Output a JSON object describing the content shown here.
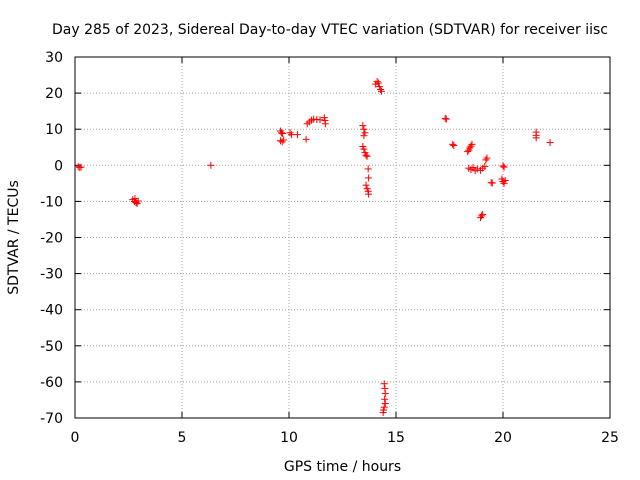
{
  "chart_data": {
    "type": "scatter",
    "title": "Day 285 of 2023, Sidereal Day-to-day VTEC variation (SDTVAR) for receiver iisc",
    "xlabel": "GPS time / hours",
    "ylabel": "SDTVAR / TECUs",
    "xlim": [
      0,
      25
    ],
    "ylim": [
      -70,
      30
    ],
    "x_ticks": [
      0,
      5,
      10,
      15,
      20,
      25
    ],
    "y_ticks": [
      -70,
      -60,
      -50,
      -40,
      -30,
      -20,
      -10,
      0,
      10,
      20,
      30
    ],
    "grid": true,
    "marker": "plus",
    "color": "#ff0000",
    "series": [
      {
        "name": "SDTVAR",
        "points": [
          [
            0.15,
            -0.4
          ],
          [
            0.22,
            -0.6
          ],
          [
            0.28,
            -0.5
          ],
          [
            2.7,
            -9.5
          ],
          [
            2.78,
            -10.0
          ],
          [
            2.85,
            -10.3
          ],
          [
            2.9,
            -10.6
          ],
          [
            2.95,
            -9.9
          ],
          [
            2.8,
            -9.2
          ],
          [
            6.35,
            0.0
          ],
          [
            9.6,
            9.5
          ],
          [
            9.65,
            9.0
          ],
          [
            9.7,
            8.8
          ],
          [
            9.6,
            6.8
          ],
          [
            9.68,
            6.5
          ],
          [
            9.75,
            7.0
          ],
          [
            10.05,
            9.0
          ],
          [
            10.12,
            8.5
          ],
          [
            10.4,
            8.5
          ],
          [
            10.8,
            7.2
          ],
          [
            10.85,
            11.5
          ],
          [
            10.95,
            12.0
          ],
          [
            11.05,
            12.5
          ],
          [
            11.15,
            12.8
          ],
          [
            11.3,
            12.7
          ],
          [
            11.45,
            12.6
          ],
          [
            11.65,
            13.2
          ],
          [
            11.7,
            11.5
          ],
          [
            11.68,
            12.4
          ],
          [
            13.45,
            11.0
          ],
          [
            13.5,
            10.0
          ],
          [
            13.55,
            9.0
          ],
          [
            13.5,
            8.2
          ],
          [
            13.45,
            5.2
          ],
          [
            13.5,
            4.5
          ],
          [
            13.55,
            3.5
          ],
          [
            13.6,
            2.8
          ],
          [
            13.65,
            2.5
          ],
          [
            13.7,
            -1.0
          ],
          [
            13.72,
            -3.5
          ],
          [
            13.6,
            -5.5
          ],
          [
            13.65,
            -6.5
          ],
          [
            13.7,
            -7.2
          ],
          [
            13.72,
            -8.0
          ],
          [
            14.05,
            22.5
          ],
          [
            14.12,
            23.2
          ],
          [
            14.18,
            22.8
          ],
          [
            14.22,
            21.8
          ],
          [
            14.28,
            21.0
          ],
          [
            14.32,
            20.5
          ],
          [
            14.45,
            -60.5
          ],
          [
            14.48,
            -61.8
          ],
          [
            14.5,
            -63.2
          ],
          [
            14.47,
            -64.8
          ],
          [
            14.5,
            -66.0
          ],
          [
            14.45,
            -67.0
          ],
          [
            14.42,
            -67.8
          ],
          [
            14.4,
            -68.5
          ],
          [
            17.3,
            13.0
          ],
          [
            17.35,
            12.8
          ],
          [
            17.65,
            5.8
          ],
          [
            17.7,
            5.5
          ],
          [
            18.35,
            3.8
          ],
          [
            18.4,
            4.2
          ],
          [
            18.45,
            4.8
          ],
          [
            18.5,
            5.3
          ],
          [
            18.55,
            5.8
          ],
          [
            18.4,
            -0.8
          ],
          [
            18.5,
            -1.2
          ],
          [
            18.6,
            -0.6
          ],
          [
            18.7,
            -1.5
          ],
          [
            18.8,
            -1.0
          ],
          [
            18.95,
            -1.4
          ],
          [
            19.05,
            -0.8
          ],
          [
            19.15,
            -0.3
          ],
          [
            19.2,
            1.5
          ],
          [
            19.25,
            2.0
          ],
          [
            18.95,
            -14.5
          ],
          [
            19.0,
            -14.0
          ],
          [
            19.05,
            -13.6
          ],
          [
            19.45,
            -4.8
          ],
          [
            19.5,
            -4.9
          ],
          [
            20.0,
            -0.2
          ],
          [
            20.05,
            -0.5
          ],
          [
            19.95,
            -3.8
          ],
          [
            20.0,
            -4.5
          ],
          [
            20.05,
            -5.0
          ],
          [
            20.1,
            -4.2
          ],
          [
            21.55,
            9.2
          ],
          [
            21.55,
            8.3
          ],
          [
            21.55,
            7.6
          ],
          [
            22.2,
            6.3
          ]
        ]
      }
    ]
  }
}
